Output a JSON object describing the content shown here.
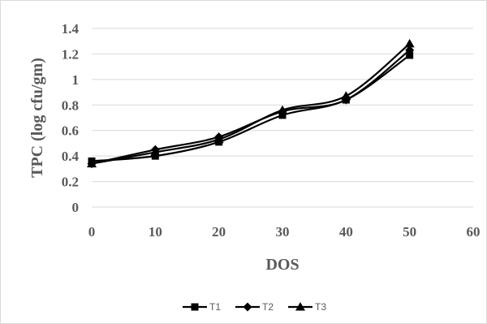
{
  "chart_data": {
    "type": "line",
    "xlabel": "DOS",
    "ylabel": "TPC (log cfu/gm)",
    "xlim": [
      0,
      60
    ],
    "ylim": [
      0,
      1.4
    ],
    "x_ticks": [
      "0",
      "10",
      "20",
      "30",
      "40",
      "50",
      "60"
    ],
    "y_ticks": [
      "0",
      "0.2",
      "0.4",
      "0.6",
      "0.8",
      "1",
      "1.2",
      "1.4"
    ],
    "grid": "horizontal",
    "legend_position": "bottom",
    "x": [
      0,
      10,
      20,
      30,
      40,
      50
    ],
    "series": [
      {
        "name": "T1",
        "marker": "square",
        "color": "#000000",
        "values": [
          0.36,
          0.4,
          0.51,
          0.72,
          0.84,
          1.19
        ]
      },
      {
        "name": "T2",
        "marker": "diamond",
        "color": "#000000",
        "values": [
          0.34,
          0.45,
          0.55,
          0.75,
          0.84,
          1.23
        ]
      },
      {
        "name": "T3",
        "marker": "triangle",
        "color": "#000000",
        "values": [
          0.34,
          0.43,
          0.53,
          0.76,
          0.87,
          1.28
        ]
      }
    ]
  }
}
